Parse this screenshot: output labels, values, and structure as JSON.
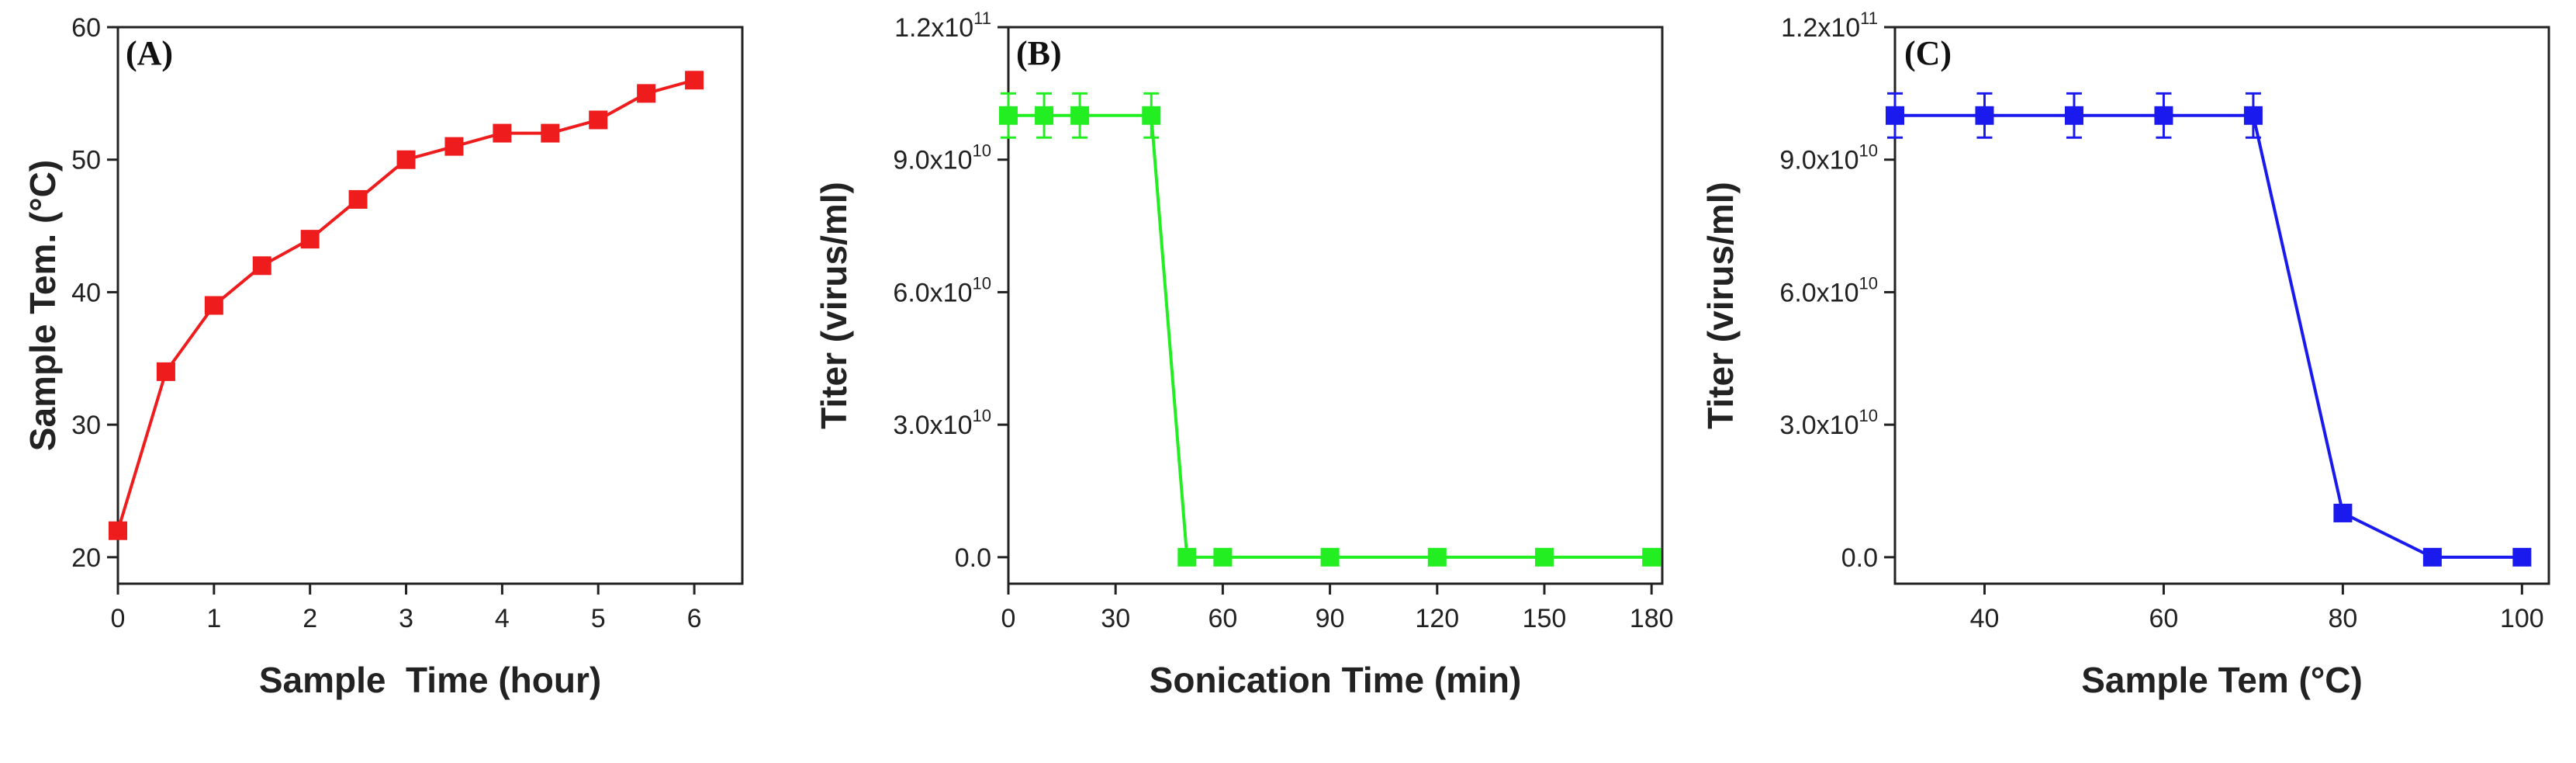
{
  "chart_data": [
    {
      "type": "line",
      "panel_label": "(A)",
      "title": "",
      "xlabel": "Sample  Time (hour)",
      "ylabel": "Sample Tem. (°C)",
      "xlim": [
        0,
        6.5
      ],
      "ylim": [
        18,
        60
      ],
      "xticks": [
        0,
        1,
        2,
        3,
        4,
        5,
        6
      ],
      "xtick_labels": [
        "0",
        "1",
        "2",
        "3",
        "4",
        "5",
        "6"
      ],
      "yticks": [
        20,
        30,
        40,
        50,
        60
      ],
      "ytick_labels": [
        "20",
        "30",
        "40",
        "50",
        "60"
      ],
      "grid": false,
      "series": [
        {
          "name": "Sample Tem.",
          "color": "#ee1c1c",
          "marker": "square",
          "x": [
            0,
            0.5,
            1,
            1.5,
            2,
            2.5,
            3,
            3.5,
            4,
            4.5,
            5,
            5.5,
            6
          ],
          "y": [
            22,
            34,
            39,
            42,
            44,
            47,
            50,
            51,
            52,
            52,
            53,
            55,
            56
          ],
          "err": null
        }
      ]
    },
    {
      "type": "line",
      "panel_label": "(B)",
      "title": "",
      "xlabel": "Sonication Time (min)",
      "ylabel": "Titer (virus/ml)",
      "xlim": [
        0,
        183
      ],
      "ylim": [
        -6000000000.0,
        120000000000.0
      ],
      "xticks": [
        0,
        30,
        60,
        90,
        120,
        150,
        180
      ],
      "xtick_labels": [
        "0",
        "30",
        "60",
        "90",
        "120",
        "150",
        "180"
      ],
      "yticks": [
        0,
        30000000000.0,
        60000000000.0,
        90000000000.0,
        120000000000.0
      ],
      "ytick_labels": [
        {
          "mant": "0.0",
          "exp": ""
        },
        {
          "mant": "3.0x10",
          "exp": "10"
        },
        {
          "mant": "6.0x10",
          "exp": "10"
        },
        {
          "mant": "9.0x10",
          "exp": "10"
        },
        {
          "mant": "1.2x10",
          "exp": "11"
        }
      ],
      "grid": false,
      "series": [
        {
          "name": "Titer",
          "color": "#22ee22",
          "marker": "square",
          "x": [
            0,
            10,
            20,
            40,
            50,
            60,
            90,
            120,
            150,
            180
          ],
          "y": [
            100000000000.0,
            100000000000.0,
            100000000000.0,
            100000000000.0,
            0,
            0,
            0,
            0,
            0,
            0
          ],
          "err": [
            5000000000.0,
            5000000000.0,
            5000000000.0,
            5000000000.0,
            0,
            0,
            0,
            0,
            0,
            0
          ]
        }
      ]
    },
    {
      "type": "line",
      "panel_label": "(C)",
      "title": "",
      "xlabel": "Sample Tem (°C)",
      "ylabel": "Titer (virus/ml)",
      "xlim": [
        30,
        103
      ],
      "ylim": [
        -6000000000.0,
        120000000000.0
      ],
      "xticks": [
        40,
        60,
        80,
        100
      ],
      "xtick_labels": [
        "40",
        "60",
        "80",
        "100"
      ],
      "yticks": [
        0,
        30000000000.0,
        60000000000.0,
        90000000000.0,
        120000000000.0
      ],
      "ytick_labels": [
        {
          "mant": "0.0",
          "exp": ""
        },
        {
          "mant": "3.0x10",
          "exp": "10"
        },
        {
          "mant": "6.0x10",
          "exp": "10"
        },
        {
          "mant": "9.0x10",
          "exp": "10"
        },
        {
          "mant": "1.2x10",
          "exp": "11"
        }
      ],
      "grid": false,
      "series": [
        {
          "name": "Titer",
          "color": "#1a1aee",
          "marker": "square",
          "x": [
            30,
            40,
            50,
            60,
            70,
            80,
            90,
            100
          ],
          "y": [
            100000000000.0,
            100000000000.0,
            100000000000.0,
            100000000000.0,
            100000000000.0,
            10000000000.0,
            0,
            0
          ],
          "err": [
            5000000000.0,
            5000000000.0,
            5000000000.0,
            5000000000.0,
            5000000000.0,
            0,
            0,
            0
          ]
        }
      ]
    }
  ]
}
